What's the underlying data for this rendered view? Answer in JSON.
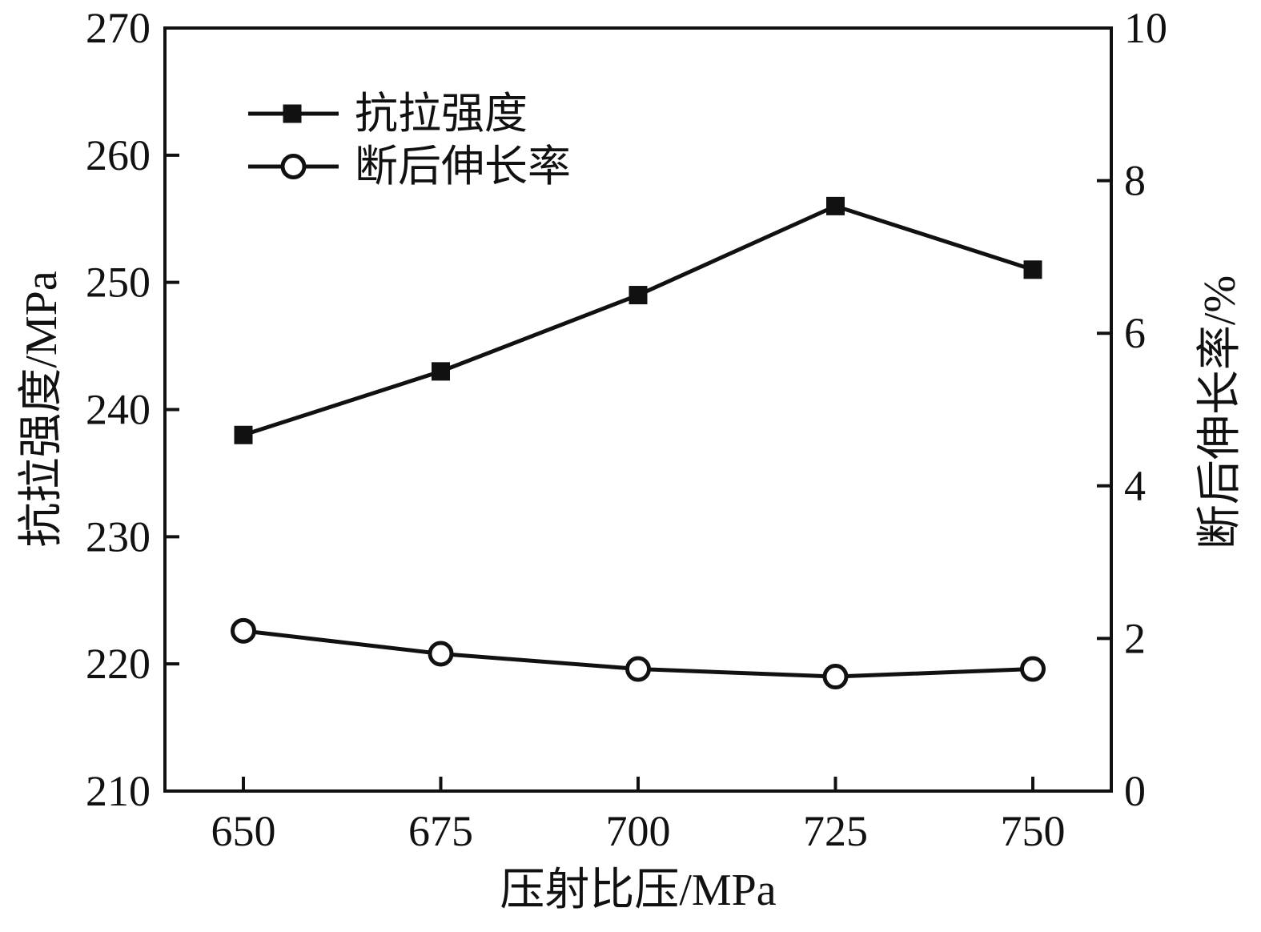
{
  "figure": {
    "description": "Line chart of tensile strength and elongation versus injection specific pressure"
  },
  "chart_data": {
    "type": "line",
    "title": "",
    "xlabel": "压射比压/MPa",
    "x": [
      650,
      675,
      700,
      725,
      750
    ],
    "x_tick_labels": [
      "650",
      "675",
      "700",
      "725",
      "750"
    ],
    "left_axis": {
      "label": "抗拉强度/MPa",
      "min": 210,
      "max": 270,
      "tick_step": 10,
      "ticks": [
        270,
        260,
        250,
        240,
        230,
        220,
        210
      ]
    },
    "right_axis": {
      "label": "断后伸长率/%",
      "min": 0,
      "max": 10,
      "tick_step": 2,
      "ticks": [
        10,
        8,
        6,
        4,
        2,
        0
      ]
    },
    "series": [
      {
        "name": "抗拉强度",
        "axis": "left",
        "marker": "filled-square",
        "values": [
          238,
          243,
          249,
          256,
          251
        ]
      },
      {
        "name": "断后伸长率",
        "axis": "right",
        "marker": "open-circle",
        "values": [
          2.1,
          1.8,
          1.6,
          1.5,
          1.6
        ]
      }
    ],
    "legend": {
      "position": "upper-left-inside",
      "border": false,
      "entries": [
        "抗拉强度",
        "断后伸长率"
      ]
    },
    "grid": false,
    "colors": {
      "ink": "#111111",
      "background": "#ffffff"
    }
  }
}
